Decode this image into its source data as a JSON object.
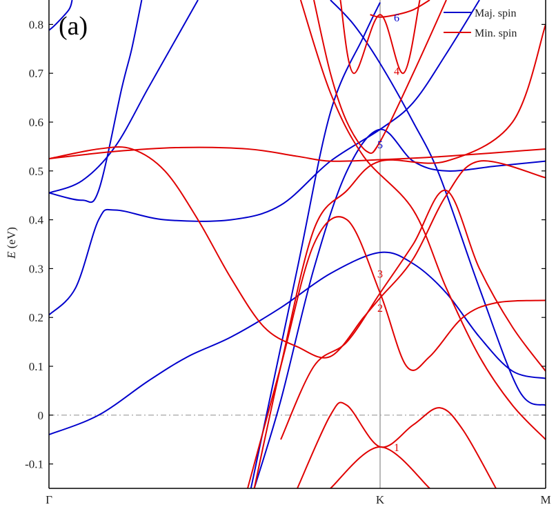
{
  "chart_data": {
    "type": "line",
    "panel_label": "(a)",
    "ylabel": "E (eV)",
    "ylim": [
      -0.15,
      0.85
    ],
    "yticks": [
      -0.1,
      0,
      0.1,
      0.2,
      0.3,
      0.4,
      0.5,
      0.6,
      0.7,
      0.8
    ],
    "ytick_labels": [
      "-0.1",
      "0",
      "0.1",
      "0.2",
      "0.3",
      "0.4",
      "0.5",
      "0.6",
      "0.7",
      "0.8"
    ],
    "xticks": [
      0,
      1,
      1.5
    ],
    "xtick_labels": [
      "Γ",
      "K",
      "M"
    ],
    "fermi_level": 0,
    "colors": {
      "maj": "#0000cc",
      "min": "#e00000",
      "axis": "#000000",
      "kline": "#888888",
      "fermi": "#999999"
    },
    "legend": {
      "position": "top-right",
      "entries": [
        {
          "label": "Maj. spin",
          "color": "#0000cc"
        },
        {
          "label": "Min. spin",
          "color": "#e00000"
        }
      ]
    },
    "series": [
      {
        "spin": "maj",
        "points": [
          [
            0,
            0.455
          ],
          [
            0.1,
            0.44
          ],
          [
            0.15,
            0.46
          ],
          [
            0.22,
            0.67
          ],
          [
            0.25,
            0.75
          ],
          [
            0.28,
            0.85
          ]
        ]
      },
      {
        "spin": "maj",
        "points": [
          [
            0,
            0.788
          ],
          [
            0.02,
            0.8
          ],
          [
            0.06,
            0.83
          ],
          [
            0.07,
            0.85
          ]
        ]
      },
      {
        "spin": "maj",
        "points": [
          [
            0,
            0.455
          ],
          [
            0.1,
            0.48
          ],
          [
            0.2,
            0.55
          ],
          [
            0.3,
            0.67
          ],
          [
            0.4,
            0.79
          ],
          [
            0.45,
            0.85
          ]
        ]
      },
      {
        "spin": "maj",
        "points": [
          [
            0,
            0.205
          ],
          [
            0.08,
            0.26
          ],
          [
            0.15,
            0.4
          ],
          [
            0.2,
            0.42
          ],
          [
            0.35,
            0.4
          ],
          [
            0.55,
            0.4
          ],
          [
            0.7,
            0.43
          ],
          [
            0.85,
            0.52
          ],
          [
            1,
            0.585
          ],
          [
            1.1,
            0.64
          ],
          [
            1.2,
            0.74
          ],
          [
            1.3,
            0.85
          ]
        ]
      },
      {
        "spin": "maj",
        "points": [
          [
            0,
            -0.04
          ],
          [
            0.15,
            0.0
          ],
          [
            0.3,
            0.07
          ],
          [
            0.42,
            0.12
          ],
          [
            0.55,
            0.16
          ],
          [
            0.7,
            0.22
          ],
          [
            0.85,
            0.29
          ],
          [
            1,
            0.333
          ],
          [
            1.1,
            0.31
          ],
          [
            1.2,
            0.25
          ],
          [
            1.3,
            0.16
          ],
          [
            1.4,
            0.09
          ],
          [
            1.5,
            0.075
          ]
        ]
      },
      {
        "spin": "maj",
        "points": [
          [
            0.61,
            -0.15
          ],
          [
            0.75,
            0.3
          ],
          [
            0.85,
            0.62
          ],
          [
            0.95,
            0.775
          ],
          [
            1,
            0.845
          ]
        ]
      },
      {
        "spin": "maj",
        "points": [
          [
            0.62,
            -0.15
          ],
          [
            0.7,
            0.03
          ],
          [
            0.8,
            0.3
          ],
          [
            0.9,
            0.5
          ],
          [
            1,
            0.585
          ],
          [
            1.1,
            0.52
          ],
          [
            1.2,
            0.5
          ],
          [
            1.35,
            0.51
          ],
          [
            1.5,
            0.52
          ]
        ]
      },
      {
        "spin": "maj",
        "points": [
          [
            0.85,
            0.85
          ],
          [
            0.92,
            0.8
          ],
          [
            1,
            0.72
          ],
          [
            1.1,
            0.6
          ],
          [
            1.18,
            0.49
          ],
          [
            1.3,
            0.26
          ],
          [
            1.42,
            0.05
          ],
          [
            1.5,
            0.02
          ]
        ]
      },
      {
        "spin": "min",
        "points": [
          [
            0,
            0.525
          ],
          [
            0.2,
            0.54
          ],
          [
            0.4,
            0.548
          ],
          [
            0.6,
            0.545
          ],
          [
            0.75,
            0.53
          ],
          [
            0.85,
            0.52
          ],
          [
            1,
            0.523
          ],
          [
            1.2,
            0.53
          ],
          [
            1.5,
            0.545
          ]
        ]
      },
      {
        "spin": "min",
        "points": [
          [
            0,
            0.525
          ],
          [
            0.15,
            0.545
          ],
          [
            0.25,
            0.545
          ],
          [
            0.35,
            0.5
          ],
          [
            0.45,
            0.4
          ],
          [
            0.55,
            0.28
          ],
          [
            0.65,
            0.18
          ],
          [
            0.75,
            0.14
          ],
          [
            0.85,
            0.12
          ],
          [
            0.95,
            0.2
          ],
          [
            1,
            0.24
          ],
          [
            1.1,
            0.32
          ],
          [
            1.2,
            0.45
          ],
          [
            1.3,
            0.52
          ],
          [
            1.5,
            0.486
          ]
        ]
      },
      {
        "spin": "min",
        "points": [
          [
            0.8,
            0.85
          ],
          [
            0.85,
            0.7
          ],
          [
            0.9,
            0.6
          ],
          [
            0.96,
            0.54
          ],
          [
            1,
            0.56
          ],
          [
            1.1,
            0.7
          ],
          [
            1.2,
            0.85
          ]
        ]
      },
      {
        "spin": "min",
        "points": [
          [
            0.88,
            0.85
          ],
          [
            0.92,
            0.7
          ],
          [
            1,
            0.82
          ],
          [
            1.07,
            0.7
          ],
          [
            1.12,
            0.85
          ]
        ]
      },
      {
        "spin": "min",
        "points": [
          [
            0.97,
            0.82
          ],
          [
            1,
            0.815
          ],
          [
            1.05,
            0.82
          ],
          [
            1.1,
            0.83
          ],
          [
            1.15,
            0.85
          ]
        ]
      },
      {
        "spin": "min",
        "points": [
          [
            0.76,
            0.85
          ],
          [
            0.85,
            0.66
          ],
          [
            0.95,
            0.53
          ],
          [
            1.1,
            0.42
          ],
          [
            1.2,
            0.26
          ],
          [
            1.3,
            0.12
          ],
          [
            1.4,
            0.02
          ],
          [
            1.5,
            -0.05
          ]
        ]
      },
      {
        "spin": "min",
        "points": [
          [
            0.62,
            -0.15
          ],
          [
            0.7,
            0.1
          ],
          [
            0.8,
            0.38
          ],
          [
            0.9,
            0.46
          ],
          [
            1,
            0.52
          ],
          [
            1.2,
            0.52
          ],
          [
            1.4,
            0.6
          ],
          [
            1.5,
            0.8
          ]
        ]
      },
      {
        "spin": "min",
        "points": [
          [
            0.6,
            -0.15
          ],
          [
            0.7,
            0.1
          ],
          [
            0.8,
            0.35
          ],
          [
            0.9,
            0.4
          ],
          [
            1,
            0.25
          ],
          [
            1.08,
            0.1
          ],
          [
            1.15,
            0.12
          ],
          [
            1.25,
            0.2
          ],
          [
            1.35,
            0.23
          ],
          [
            1.5,
            0.235
          ]
        ]
      },
      {
        "spin": "min",
        "points": [
          [
            0.7,
            -0.05
          ],
          [
            0.8,
            0.1
          ],
          [
            0.9,
            0.15
          ],
          [
            1,
            0.25
          ],
          [
            1.1,
            0.35
          ],
          [
            1.2,
            0.46
          ],
          [
            1.3,
            0.3
          ],
          [
            1.4,
            0.18
          ],
          [
            1.5,
            0.09
          ]
        ]
      },
      {
        "spin": "min",
        "points": [
          [
            0.75,
            -0.15
          ],
          [
            0.85,
            0.0
          ],
          [
            0.9,
            0.02
          ],
          [
            1,
            -0.065
          ],
          [
            1.1,
            -0.02
          ],
          [
            1.18,
            0.015
          ],
          [
            1.25,
            -0.03
          ],
          [
            1.35,
            -0.15
          ]
        ]
      },
      {
        "spin": "min",
        "points": [
          [
            0.85,
            -0.15
          ],
          [
            1,
            -0.065
          ],
          [
            1.15,
            -0.15
          ]
        ]
      }
    ],
    "band_labels": [
      {
        "text": "6",
        "x": 1.05,
        "y": 0.815,
        "spin": "maj"
      },
      {
        "text": "4",
        "x": 1.05,
        "y": 0.705,
        "spin": "min"
      },
      {
        "text": "5",
        "x": 1.0,
        "y": 0.555,
        "spin": "maj"
      },
      {
        "text": "3",
        "x": 1.0,
        "y": 0.29,
        "spin": "min"
      },
      {
        "text": "2",
        "x": 1.0,
        "y": 0.22,
        "spin": "min"
      },
      {
        "text": "1",
        "x": 1.05,
        "y": -0.065,
        "spin": "min"
      }
    ]
  }
}
